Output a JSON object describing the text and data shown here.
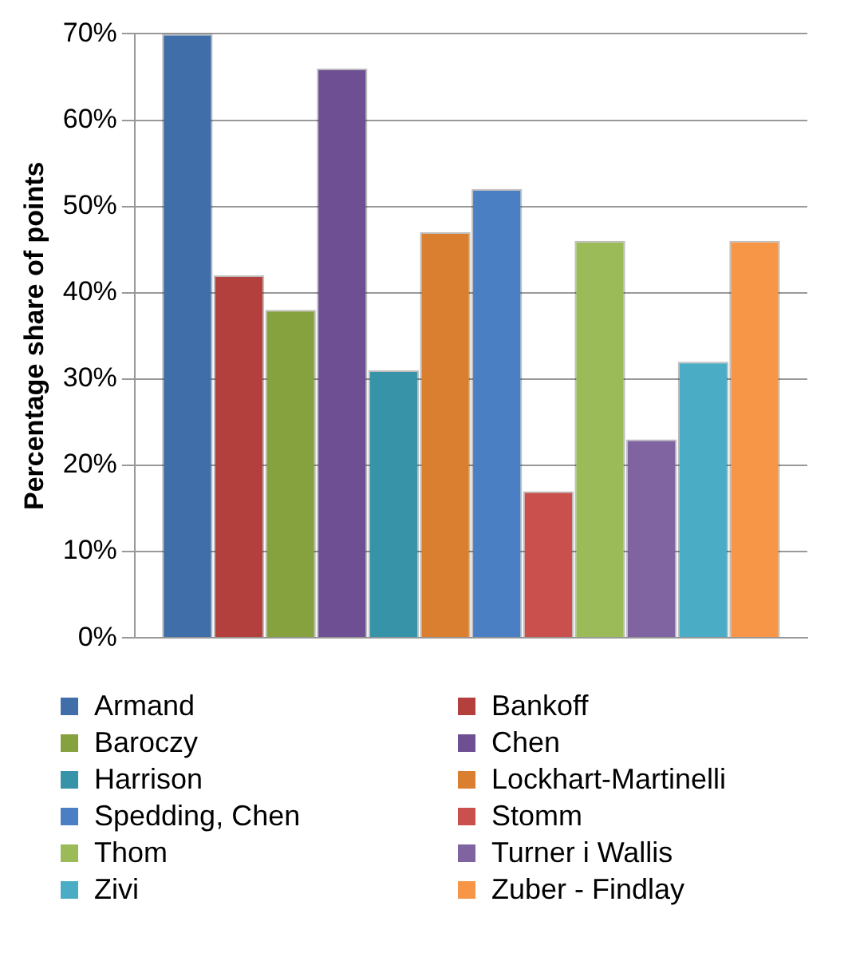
{
  "chart_data": {
    "type": "bar",
    "ylabel": "Percentage share of points",
    "categories": [
      null
    ],
    "series": [
      {
        "name": "Armand",
        "color": "#3f6ea8",
        "values": [
          70
        ]
      },
      {
        "name": "Bankoff",
        "color": "#b3403c",
        "values": [
          42
        ]
      },
      {
        "name": "Baroczy",
        "color": "#86a23e",
        "values": [
          38
        ]
      },
      {
        "name": "Chen",
        "color": "#6e4f93",
        "values": [
          66
        ]
      },
      {
        "name": "Harrison",
        "color": "#3793a8",
        "values": [
          31
        ]
      },
      {
        "name": "Lockhart-Martinelli",
        "color": "#da7f2f",
        "values": [
          47
        ]
      },
      {
        "name": "Spedding, Chen",
        "color": "#4a7fc4",
        "values": [
          52
        ]
      },
      {
        "name": "Stomm",
        "color": "#c9504d",
        "values": [
          17
        ]
      },
      {
        "name": "Thom",
        "color": "#9bbb59",
        "values": [
          46
        ]
      },
      {
        "name": "Turner i Wallis",
        "color": "#8064a2",
        "values": [
          23
        ]
      },
      {
        "name": "Zivi",
        "color": "#4bacc6",
        "values": [
          32
        ]
      },
      {
        "name": "Zuber - Findlay",
        "color": "#f79646",
        "values": [
          46
        ]
      }
    ],
    "ylim": [
      0,
      70
    ],
    "yticks": [
      {
        "value": 0,
        "label": "0%"
      },
      {
        "value": 10,
        "label": "10%"
      },
      {
        "value": 20,
        "label": "20%"
      },
      {
        "value": 30,
        "label": "30%"
      },
      {
        "value": 40,
        "label": "40%"
      },
      {
        "value": 50,
        "label": "50%"
      },
      {
        "value": 60,
        "label": "60%"
      },
      {
        "value": 70,
        "label": "70%"
      }
    ],
    "grid": "y",
    "legend": "bottom"
  }
}
